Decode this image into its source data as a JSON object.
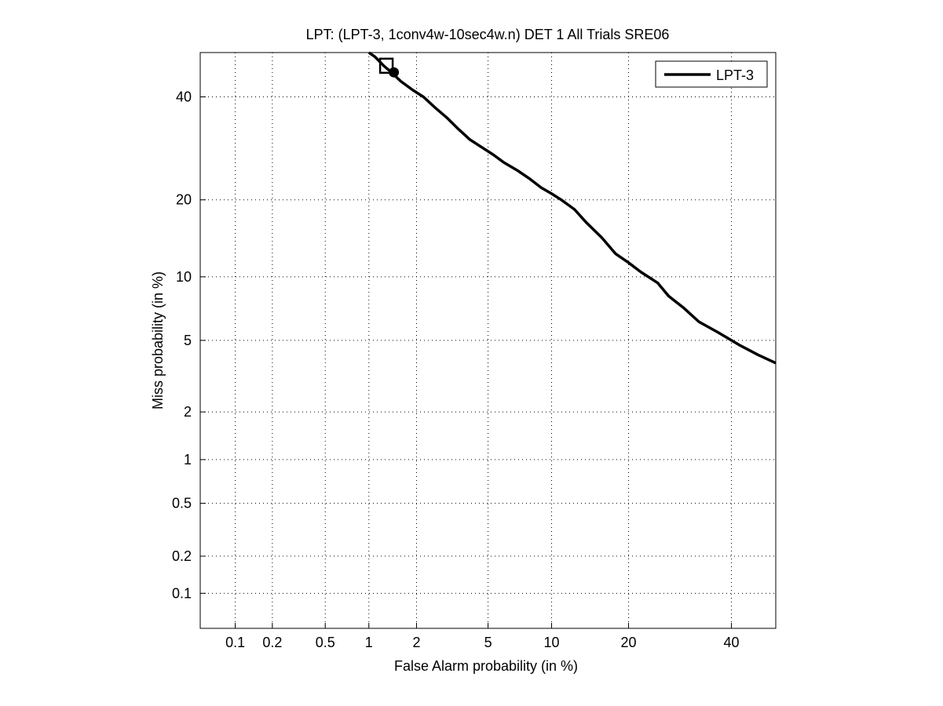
{
  "chart_data": {
    "type": "line",
    "title": "LPT: (LPT-3, 1conv4w-10sec4w.n) DET 1 All Trials SRE06",
    "xlabel": "False Alarm probability (in %)",
    "ylabel": "Miss probability (in %)",
    "scale": "normal-deviate (DET) axes",
    "x_ticks": [
      "0.1",
      "0.2",
      "0.5",
      "1",
      "2",
      "5",
      "10",
      "20",
      "40"
    ],
    "y_ticks": [
      "0.1",
      "0.2",
      "0.5",
      "1",
      "2",
      "5",
      "10",
      "20",
      "40"
    ],
    "xlim": [
      0.05,
      50
    ],
    "ylim": [
      0.05,
      50
    ],
    "grid": true,
    "legend_position": "top-right",
    "series": [
      {
        "name": "LPT-3",
        "color": "#000000",
        "x": [
          1.0,
          1.1,
          1.25,
          1.4,
          1.6,
          1.9,
          2.2,
          2.6,
          3.0,
          3.5,
          4.0,
          4.6,
          5.3,
          6.0,
          7.0,
          8.0,
          9.0,
          10.0,
          11.0,
          12.5,
          14.0,
          16.0,
          18.0,
          20.0,
          22.0,
          25.0,
          27.0,
          30.0,
          33.0,
          37.0,
          42.0,
          46.0,
          50.0
        ],
        "y": [
          50.0,
          49.0,
          47.0,
          45.5,
          43.5,
          41.5,
          40.0,
          37.5,
          35.5,
          33.0,
          31.0,
          29.5,
          28.0,
          26.5,
          25.0,
          23.5,
          22.0,
          21.0,
          20.0,
          18.5,
          16.5,
          14.5,
          12.5,
          11.5,
          10.5,
          9.4,
          8.2,
          7.2,
          6.2,
          5.5,
          4.7,
          4.2,
          3.8
        ]
      }
    ],
    "markers": [
      {
        "shape": "square",
        "x": 1.3,
        "y": 47.0
      },
      {
        "shape": "circle",
        "x": 1.45,
        "y": 45.5
      }
    ]
  }
}
